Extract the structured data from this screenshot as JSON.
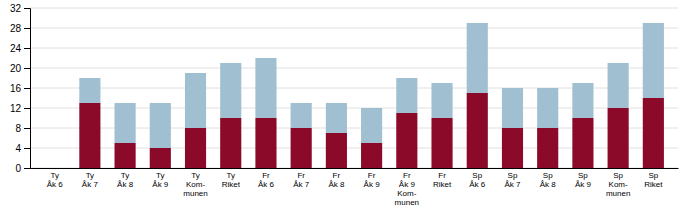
{
  "chart_data": {
    "type": "bar",
    "stacked": true,
    "grid": true,
    "categories": [
      "Ty\nÅk 6",
      "Ty\nÅk 7",
      "Ty\nÅk 8",
      "Ty\nÅk 9",
      "Ty\nKom-\nmunen",
      "Ty\nRiket",
      "Fr\nÅk 6",
      "Fr\nÅk 7",
      "Fr\nÅk 8",
      "Fr\nÅk 9",
      "Fr\nÅk 9\nKom-\nmunen",
      "Fr\nRiket",
      "Sp\nÅk 6",
      "Sp\nÅk 7",
      "Sp\nÅk 8",
      "Sp\nÅk 9",
      "Sp\nKom-\nmunen",
      "Sp\nRiket"
    ],
    "series": [
      {
        "color": "#8B0A2A",
        "values": [
          0,
          13,
          5,
          4,
          8,
          10,
          10,
          8,
          7,
          5,
          11,
          10,
          15,
          8,
          8,
          10,
          12,
          14
        ]
      },
      {
        "color": "#A0BFD0",
        "values": [
          0,
          5,
          8,
          9,
          11,
          11,
          12,
          5,
          6,
          7,
          7,
          7,
          14,
          8,
          8,
          7,
          9,
          15
        ]
      }
    ],
    "ylim": [
      0,
      32
    ],
    "yticks": [
      0,
      4,
      8,
      12,
      16,
      20,
      24,
      28,
      32
    ]
  }
}
